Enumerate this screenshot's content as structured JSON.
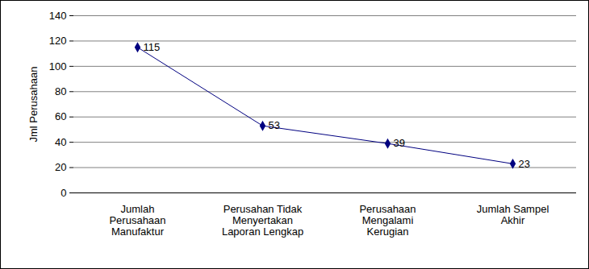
{
  "chart_data": {
    "type": "line",
    "y_label": "Jml Perusahaan",
    "categories": [
      "Jumlah Perusahaan Manufaktur",
      "Perusahan Tidak Menyertakan Laporan Lengkap",
      "Perusahaan Mengalami Kerugian",
      "Jumlah Sampel Akhir"
    ],
    "values": [
      115,
      53,
      39,
      23
    ],
    "color": "#000080",
    "marker": "diamond",
    "line_style": "solid",
    "data_labels": true,
    "grid": true,
    "ylim": [
      0,
      140
    ],
    "yticks": [
      0,
      20,
      40,
      60,
      80,
      100,
      120,
      140
    ]
  }
}
